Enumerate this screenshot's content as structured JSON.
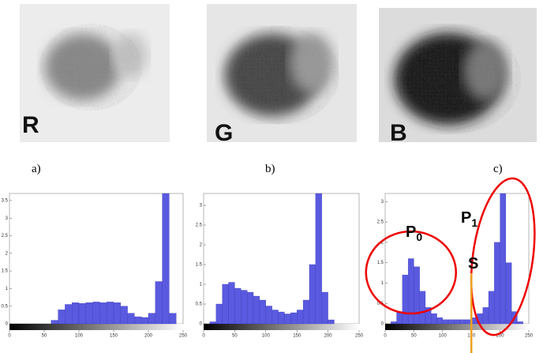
{
  "panels": [
    {
      "letter": "R",
      "caption": "a)"
    },
    {
      "letter": "G",
      "caption": "b)"
    },
    {
      "letter": "B",
      "caption": "c)"
    }
  ],
  "chart_data": [
    {
      "type": "histogram",
      "color": "#5a5ae0",
      "xlim": [
        0,
        250
      ],
      "ylim": [
        0,
        3.7
      ],
      "xticks": [
        0,
        50,
        100,
        150,
        200,
        250
      ],
      "yticks": [
        0,
        0.5,
        1,
        1.5,
        2,
        2.5,
        3,
        3.5
      ],
      "bins": [
        0,
        10,
        20,
        30,
        40,
        50,
        60,
        70,
        80,
        90,
        100,
        110,
        120,
        130,
        140,
        150,
        160,
        170,
        180,
        190,
        200,
        210,
        220,
        230,
        240,
        250
      ],
      "counts": [
        0,
        0,
        0,
        0,
        0,
        0,
        0.1,
        0.4,
        0.55,
        0.6,
        0.58,
        0.6,
        0.62,
        0.6,
        0.62,
        0.6,
        0.5,
        0.3,
        0.2,
        0.18,
        0.3,
        1.2,
        3.7,
        0.3,
        0
      ]
    },
    {
      "type": "histogram",
      "color": "#5a5ae0",
      "xlim": [
        0,
        250
      ],
      "ylim": [
        0,
        3.3
      ],
      "xticks": [
        0,
        50,
        100,
        150,
        200,
        250
      ],
      "yticks": [
        0,
        0.5,
        1,
        1.5,
        2,
        2.5,
        3
      ],
      "bins": [
        0,
        10,
        20,
        30,
        40,
        50,
        60,
        70,
        80,
        90,
        100,
        110,
        120,
        130,
        140,
        150,
        160,
        170,
        180,
        190,
        200,
        210,
        220,
        230,
        240,
        250
      ],
      "counts": [
        0,
        0.05,
        0.5,
        1,
        1.05,
        0.9,
        0.85,
        0.8,
        0.7,
        0.6,
        0.45,
        0.35,
        0.3,
        0.25,
        0.28,
        0.35,
        0.6,
        1.5,
        3.3,
        0.8,
        0.1,
        0,
        0,
        0,
        0
      ]
    },
    {
      "type": "histogram",
      "color": "#5a5ae0",
      "xlim": [
        0,
        250
      ],
      "ylim": [
        0,
        3.2
      ],
      "xticks": [
        0,
        50,
        100,
        150,
        200,
        250
      ],
      "yticks": [
        0,
        0.5,
        1,
        1.5,
        2,
        2.5,
        3
      ],
      "bins": [
        0,
        10,
        20,
        30,
        40,
        50,
        60,
        70,
        80,
        90,
        100,
        110,
        120,
        130,
        140,
        150,
        160,
        170,
        180,
        190,
        200,
        210,
        220,
        230,
        240,
        250
      ],
      "counts": [
        0,
        0.05,
        0.3,
        1.2,
        1.6,
        1.4,
        0.8,
        0.4,
        0.25,
        0.15,
        0.1,
        0.1,
        0.1,
        0.1,
        0.1,
        0.15,
        0.25,
        0.4,
        0.8,
        2,
        3.2,
        1.5,
        0.3,
        0.05,
        0
      ],
      "annotations": {
        "p0": {
          "main": "P",
          "sub": "0"
        },
        "p1": {
          "main": "P",
          "sub": "1"
        },
        "s": "S",
        "threshold": 150
      }
    }
  ]
}
